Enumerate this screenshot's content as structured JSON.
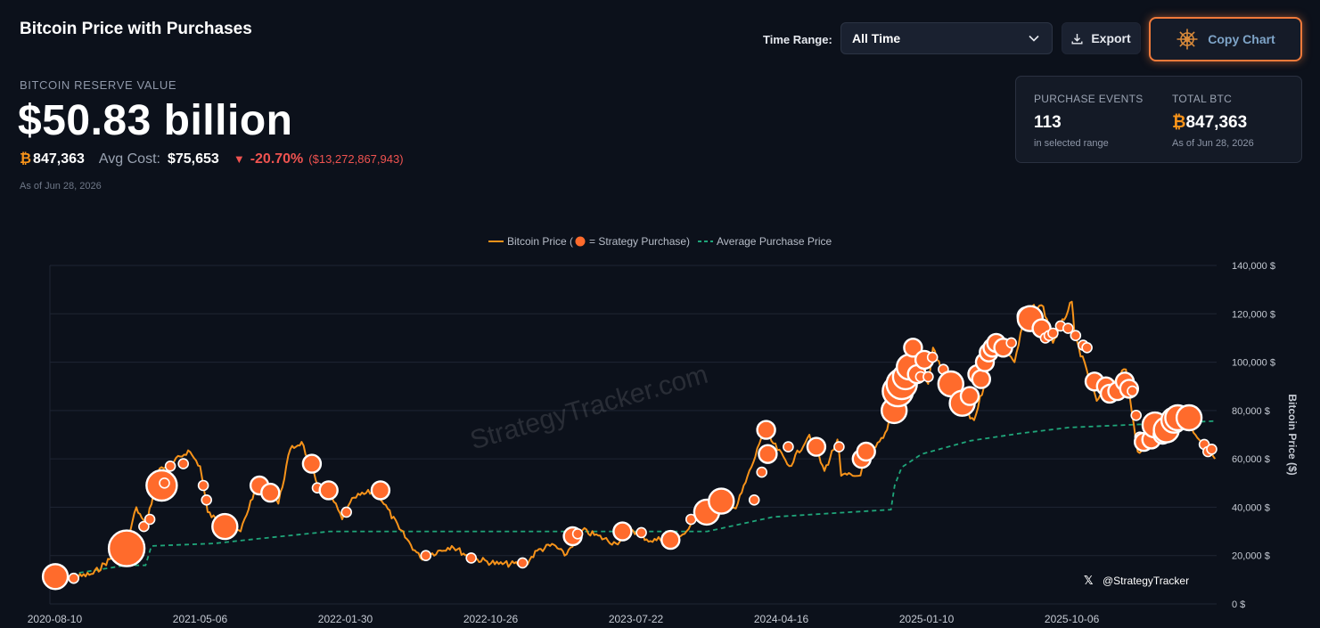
{
  "header": {
    "title": "Bitcoin Price with Purchases",
    "reserve_label": "BITCOIN RESERVE VALUE",
    "reserve_value": "$50.83 billion",
    "btc_symbol": "₿",
    "btc_amount": "847,363",
    "avg_cost_label": "Avg Cost:",
    "avg_cost_value": "$75,653",
    "change_arrow": "▼",
    "change_pct": "-20.70%",
    "change_usd": "($13,272,867,943)",
    "as_of": "As of Jun 28, 2026"
  },
  "controls": {
    "time_range_label": "Time Range:",
    "time_range_value": "All Time",
    "export_label": "Export",
    "copy_chart_label": "Copy Chart",
    "icons": {
      "dropdown": "chevron-down-icon",
      "export": "download-icon",
      "copy": "ships-wheel-icon"
    }
  },
  "summary": {
    "purchase_events_label": "PURCHASE EVENTS",
    "purchase_events_value": "113",
    "purchase_events_sub": "in selected range",
    "total_btc_label": "TOTAL BTC",
    "total_btc_symbol": "₿",
    "total_btc_value": "847,363",
    "total_btc_sub": "As of Jun 28, 2026"
  },
  "colors": {
    "price_line": "#f7931a",
    "purchase_dot": "#ff6b2c",
    "avg_line": "#1fa67a",
    "accent": "#f07a3a",
    "background": "#0c111b"
  },
  "chart_data": {
    "type": "line",
    "legend": {
      "price": "Bitcoin Price (",
      "purchase": "= Strategy Purchase)",
      "avg": "Average Purchase Price",
      "placement": "top-center"
    },
    "ylabel": "Bitcoin Price ($)",
    "ylim": [
      0,
      140000
    ],
    "yticks": [
      0,
      20000,
      40000,
      60000,
      80000,
      100000,
      120000,
      140000
    ],
    "ytick_labels": [
      "0 $",
      "20,000 $",
      "40,000 $",
      "60,000 $",
      "80,000 $",
      "100,000 $",
      "120,000 $",
      "140,000 $"
    ],
    "xlim": [
      "2020-08-01",
      "2026-07-01"
    ],
    "xtick_labels": [
      "2020-08-10",
      "2021-05-06",
      "2022-01-30",
      "2022-10-26",
      "2023-07-22",
      "2024-04-16",
      "2025-01-10",
      "2025-10-06"
    ],
    "grid": true,
    "watermark": "StrategyTracker.com",
    "handle": "@StrategyTracker",
    "series": [
      {
        "name": "Bitcoin Price",
        "style": "solid",
        "points": [
          [
            "2020-08-01",
            11800
          ],
          [
            "2020-09-15",
            10800
          ],
          [
            "2020-10-20",
            12500
          ],
          [
            "2020-11-20",
            18500
          ],
          [
            "2020-12-20",
            23500
          ],
          [
            "2021-01-08",
            40000
          ],
          [
            "2021-01-25",
            32000
          ],
          [
            "2021-02-20",
            56000
          ],
          [
            "2021-03-15",
            58000
          ],
          [
            "2021-04-14",
            63500
          ],
          [
            "2021-05-06",
            57000
          ],
          [
            "2021-05-20",
            38000
          ],
          [
            "2021-06-22",
            31000
          ],
          [
            "2021-07-20",
            30000
          ],
          [
            "2021-08-15",
            47000
          ],
          [
            "2021-09-06",
            51000
          ],
          [
            "2021-09-28",
            41500
          ],
          [
            "2021-10-20",
            64000
          ],
          [
            "2021-11-10",
            67000
          ],
          [
            "2021-12-10",
            49000
          ],
          [
            "2022-01-05",
            44000
          ],
          [
            "2022-01-24",
            35000
          ],
          [
            "2022-02-15",
            44000
          ],
          [
            "2022-03-28",
            47000
          ],
          [
            "2022-05-10",
            31000
          ],
          [
            "2022-06-18",
            19000
          ],
          [
            "2022-08-15",
            24000
          ],
          [
            "2022-09-20",
            19000
          ],
          [
            "2022-11-10",
            16500
          ],
          [
            "2022-12-30",
            16500
          ],
          [
            "2023-01-20",
            22000
          ],
          [
            "2023-02-20",
            24500
          ],
          [
            "2023-03-12",
            20000
          ],
          [
            "2023-04-14",
            30500
          ],
          [
            "2023-06-15",
            25000
          ],
          [
            "2023-07-13",
            31000
          ],
          [
            "2023-08-18",
            26000
          ],
          [
            "2023-10-20",
            29000
          ],
          [
            "2023-11-15",
            37000
          ],
          [
            "2023-12-31",
            43000
          ],
          [
            "2024-01-23",
            39500
          ],
          [
            "2024-02-28",
            61000
          ],
          [
            "2024-03-14",
            72000
          ],
          [
            "2024-05-01",
            57000
          ],
          [
            "2024-06-07",
            70000
          ],
          [
            "2024-07-05",
            55000
          ],
          [
            "2024-07-29",
            68000
          ],
          [
            "2024-08-05",
            53000
          ],
          [
            "2024-09-06",
            53000
          ],
          [
            "2024-10-29",
            72000
          ],
          [
            "2024-11-22",
            99000
          ],
          [
            "2024-12-17",
            107000
          ],
          [
            "2025-01-13",
            91000
          ],
          [
            "2025-01-22",
            106000
          ],
          [
            "2025-02-27",
            84000
          ],
          [
            "2025-04-08",
            76000
          ],
          [
            "2025-05-22",
            111000
          ],
          [
            "2025-06-22",
            100000
          ],
          [
            "2025-07-14",
            122000
          ],
          [
            "2025-08-14",
            123000
          ],
          [
            "2025-09-01",
            108000
          ],
          [
            "2025-10-06",
            125000
          ],
          [
            "2025-10-11",
            111000
          ],
          [
            "2025-11-21",
            84000
          ],
          [
            "2026-01-14",
            97000
          ],
          [
            "2026-02-05",
            63000
          ],
          [
            "2026-03-20",
            71000
          ],
          [
            "2026-05-01",
            77000
          ],
          [
            "2026-06-28",
            60000
          ]
        ]
      },
      {
        "name": "Average Purchase Price",
        "style": "dashed",
        "points": [
          [
            "2020-08-11",
            11300
          ],
          [
            "2020-12-20",
            16000
          ],
          [
            "2021-01-25",
            16000
          ],
          [
            "2021-02-05",
            24000
          ],
          [
            "2021-06-01",
            25000
          ],
          [
            "2021-08-01",
            26500
          ],
          [
            "2022-01-01",
            30000
          ],
          [
            "2023-12-01",
            30000
          ],
          [
            "2024-04-01",
            36000
          ],
          [
            "2024-11-05",
            39000
          ],
          [
            "2024-11-12",
            49000
          ],
          [
            "2024-11-25",
            56500
          ],
          [
            "2025-01-01",
            62000
          ],
          [
            "2025-04-01",
            67500
          ],
          [
            "2025-07-01",
            70500
          ],
          [
            "2025-10-01",
            73000
          ],
          [
            "2026-06-28",
            75653
          ]
        ]
      }
    ],
    "purchases": [
      [
        "2020-08-11",
        11300,
        3
      ],
      [
        "2020-09-14",
        10600,
        1
      ],
      [
        "2020-12-04",
        19300,
        1
      ],
      [
        "2020-12-21",
        23000,
        5
      ],
      [
        "2021-01-22",
        32000,
        1
      ],
      [
        "2021-02-02",
        35000,
        1
      ],
      [
        "2021-02-24",
        49000,
        4
      ],
      [
        "2021-03-01",
        50000,
        1
      ],
      [
        "2021-03-12",
        57000,
        1
      ],
      [
        "2021-04-05",
        58000,
        1
      ],
      [
        "2021-05-12",
        49000,
        1
      ],
      [
        "2021-05-18",
        43000,
        1
      ],
      [
        "2021-06-21",
        32000,
        3
      ],
      [
        "2021-08-24",
        49000,
        2
      ],
      [
        "2021-09-13",
        46000,
        2
      ],
      [
        "2021-11-29",
        58000,
        2
      ],
      [
        "2021-12-09",
        48000,
        1
      ],
      [
        "2021-12-30",
        47000,
        2
      ],
      [
        "2022-02-01",
        38000,
        1
      ],
      [
        "2022-04-05",
        47000,
        2
      ],
      [
        "2022-06-28",
        20000,
        1
      ],
      [
        "2022-09-20",
        19000,
        1
      ],
      [
        "2022-12-24",
        17000,
        1
      ],
      [
        "2023-03-27",
        28000,
        2
      ],
      [
        "2023-04-05",
        29000,
        1
      ],
      [
        "2023-06-27",
        30000,
        2
      ],
      [
        "2023-08-01",
        29500,
        1
      ],
      [
        "2023-09-24",
        26500,
        2
      ],
      [
        "2023-11-01",
        35000,
        1
      ],
      [
        "2023-11-30",
        38000,
        3
      ],
      [
        "2023-12-27",
        42500,
        3
      ],
      [
        "2024-02-26",
        43000,
        1
      ],
      [
        "2024-03-11",
        54500,
        1
      ],
      [
        "2024-03-19",
        72000,
        2
      ],
      [
        "2024-03-22",
        62000,
        2
      ],
      [
        "2024-04-29",
        65000,
        1
      ],
      [
        "2024-06-20",
        65000,
        2
      ],
      [
        "2024-08-01",
        65000,
        1
      ],
      [
        "2024-09-12",
        60000,
        2
      ],
      [
        "2024-09-20",
        63000,
        2
      ],
      [
        "2024-11-11",
        80000,
        3
      ],
      [
        "2024-11-18",
        88000,
        4
      ],
      [
        "2024-11-25",
        91000,
        4
      ],
      [
        "2024-12-02",
        94000,
        3
      ],
      [
        "2024-12-09",
        98000,
        3
      ],
      [
        "2024-12-16",
        106000,
        2
      ],
      [
        "2024-12-23",
        95000,
        2
      ],
      [
        "2024-12-30",
        94000,
        1
      ],
      [
        "2025-01-06",
        101000,
        2
      ],
      [
        "2025-01-13",
        94000,
        1
      ],
      [
        "2025-01-21",
        102000,
        1
      ],
      [
        "2025-02-10",
        97000,
        1
      ],
      [
        "2025-02-24",
        91000,
        3
      ],
      [
        "2025-03-17",
        83000,
        3
      ],
      [
        "2025-03-31",
        86000,
        2
      ],
      [
        "2025-04-14",
        95000,
        2
      ],
      [
        "2025-04-21",
        93000,
        2
      ],
      [
        "2025-04-28",
        100000,
        2
      ],
      [
        "2025-05-05",
        104000,
        2
      ],
      [
        "2025-05-12",
        106000,
        2
      ],
      [
        "2025-05-19",
        108000,
        2
      ],
      [
        "2025-06-01",
        106000,
        2
      ],
      [
        "2025-06-16",
        108000,
        1
      ],
      [
        "2025-07-14",
        119000,
        2
      ],
      [
        "2025-07-21",
        118000,
        3
      ],
      [
        "2025-08-11",
        114000,
        2
      ],
      [
        "2025-08-18",
        110000,
        1
      ],
      [
        "2025-08-25",
        111000,
        1
      ],
      [
        "2025-09-01",
        112000,
        1
      ],
      [
        "2025-09-15",
        115000,
        1
      ],
      [
        "2025-09-29",
        114000,
        1
      ],
      [
        "2025-10-13",
        111000,
        1
      ],
      [
        "2025-10-27",
        107000,
        1
      ],
      [
        "2025-11-03",
        106000,
        1
      ],
      [
        "2025-11-17",
        92000,
        2
      ],
      [
        "2025-12-08",
        90000,
        2
      ],
      [
        "2025-12-15",
        87000,
        2
      ],
      [
        "2025-12-29",
        88000,
        2
      ],
      [
        "2026-01-12",
        92000,
        2
      ],
      [
        "2026-01-20",
        89000,
        2
      ],
      [
        "2026-01-26",
        88000,
        1
      ],
      [
        "2026-02-02",
        78000,
        1
      ],
      [
        "2026-02-09",
        69000,
        1
      ],
      [
        "2026-02-16",
        67000,
        2
      ],
      [
        "2026-03-02",
        68000,
        2
      ],
      [
        "2026-03-09",
        74000,
        3
      ],
      [
        "2026-03-23",
        70000,
        2
      ],
      [
        "2026-03-30",
        72000,
        3
      ],
      [
        "2026-04-13",
        76000,
        3
      ],
      [
        "2026-04-20",
        77000,
        3
      ],
      [
        "2026-05-11",
        77000,
        3
      ],
      [
        "2026-06-08",
        66000,
        1
      ],
      [
        "2026-06-15",
        63000,
        1
      ],
      [
        "2026-06-22",
        64000,
        1
      ]
    ]
  }
}
